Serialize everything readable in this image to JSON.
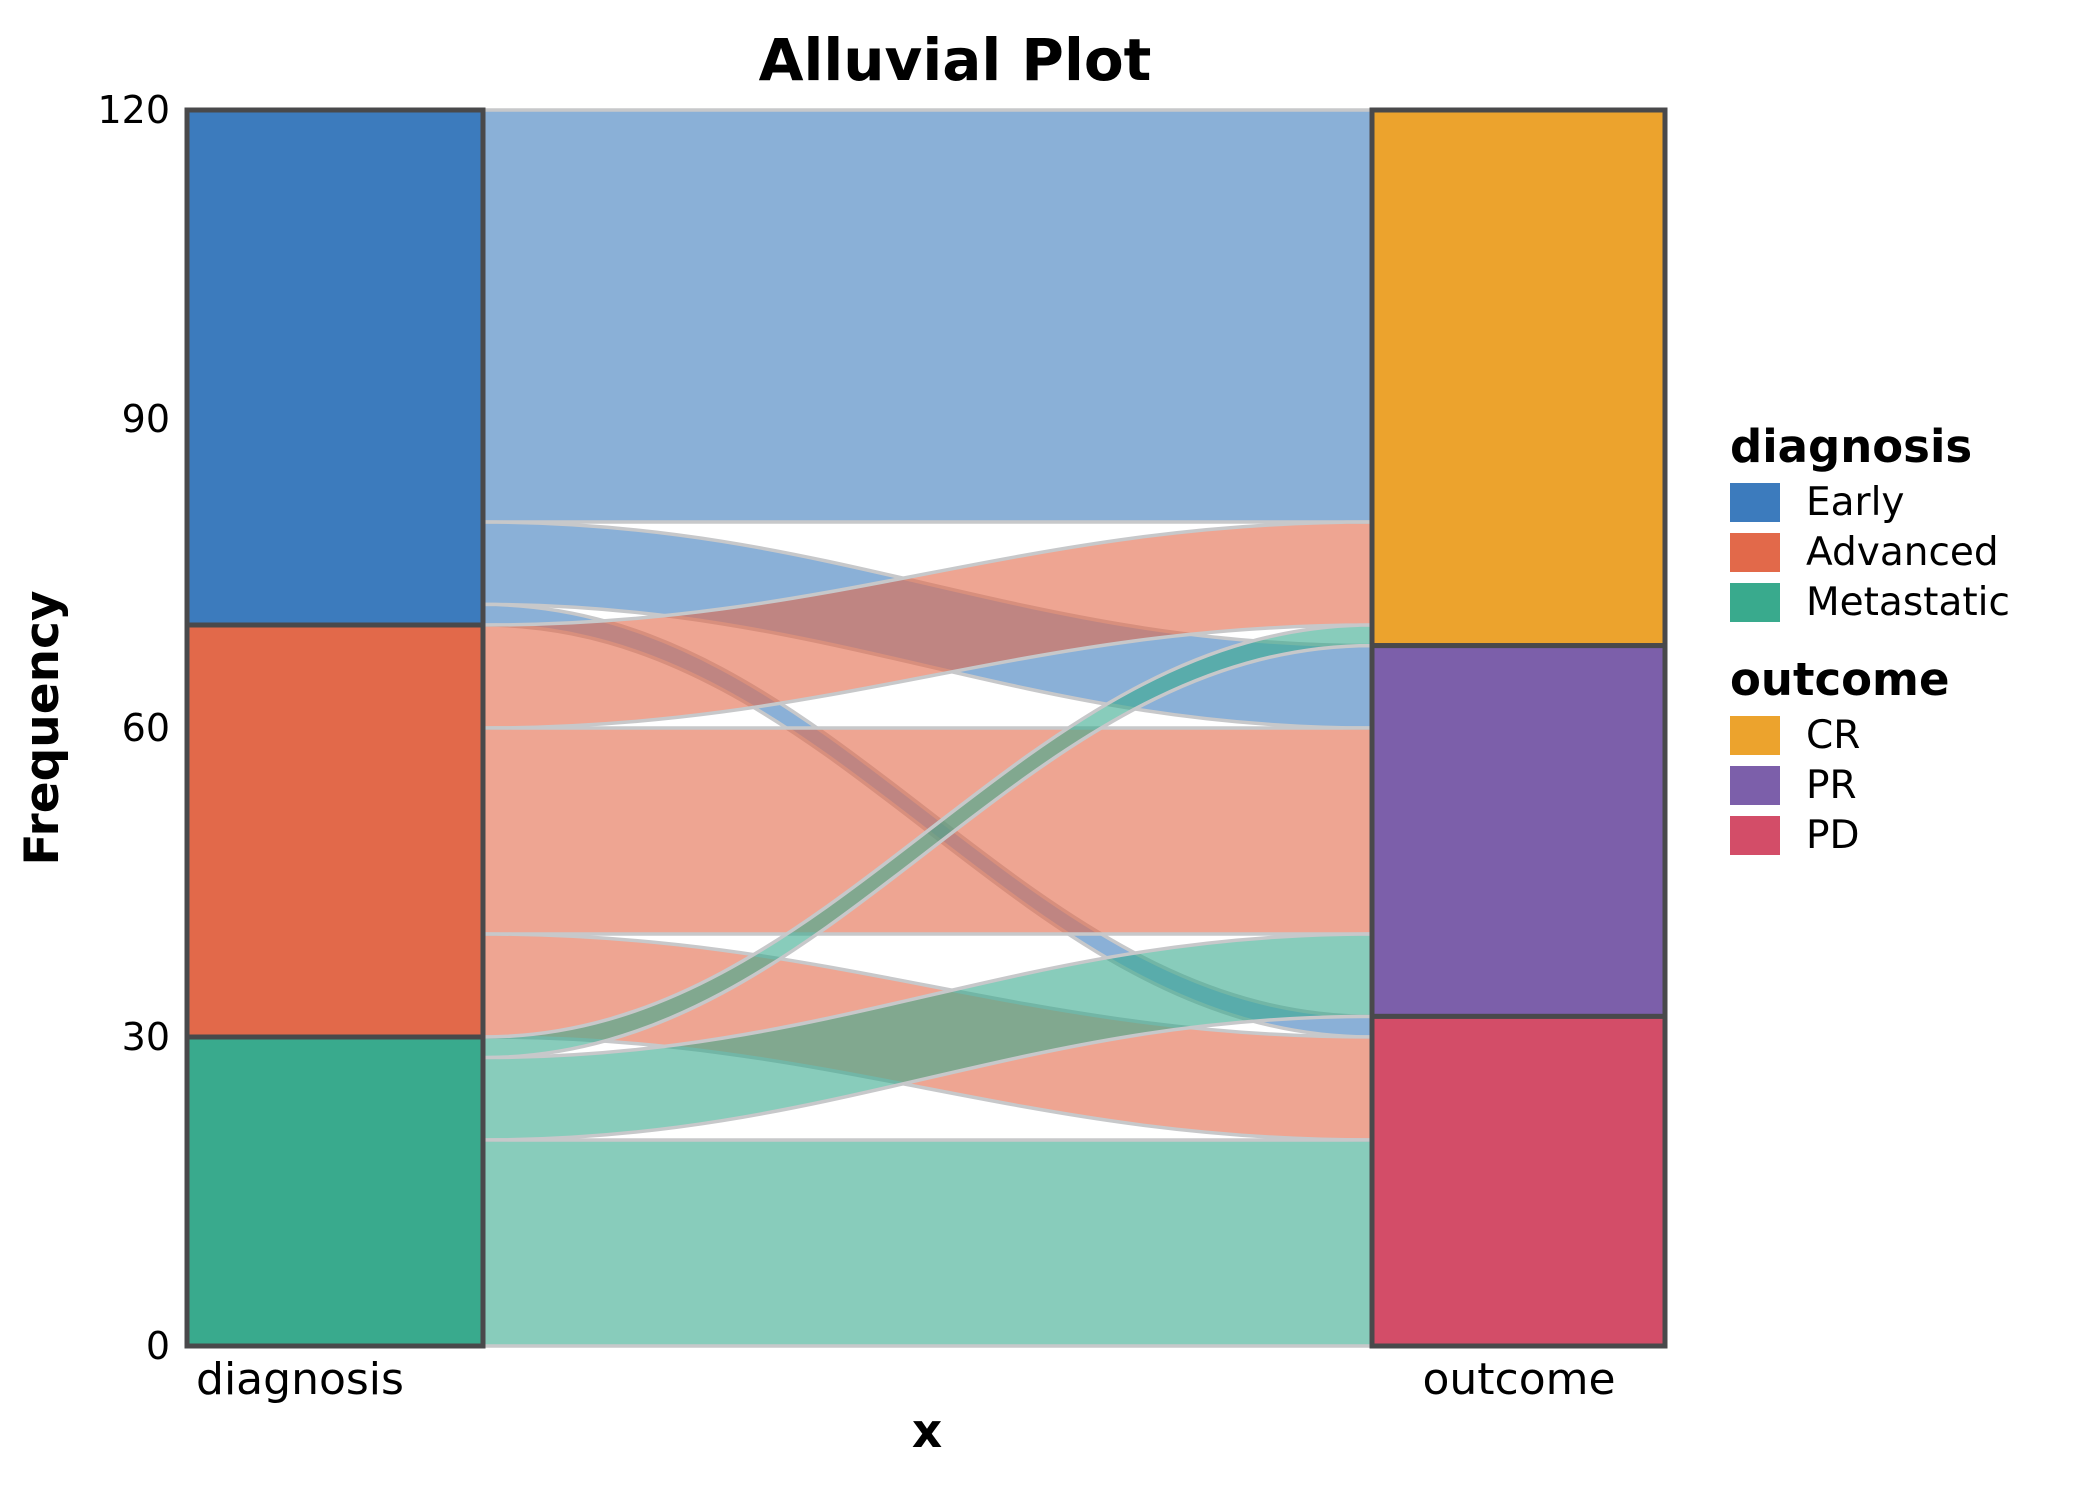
{
  "chart_data": {
    "type": "alluvial",
    "title": "Alluvial Plot",
    "xlabel": "x",
    "ylabel": "Frequency",
    "ylim": [
      0,
      120
    ],
    "yticks": [
      0,
      30,
      60,
      90,
      120
    ],
    "grid": false,
    "axes": [
      "diagnosis",
      "outcome"
    ],
    "strata": {
      "diagnosis": [
        {
          "name": "Early",
          "value": 50,
          "color": "#3C7BBD"
        },
        {
          "name": "Advanced",
          "value": 40,
          "color": "#E2694A"
        },
        {
          "name": "Metastatic",
          "value": 30,
          "color": "#39AA8D"
        }
      ],
      "outcome": [
        {
          "name": "CR",
          "value": 52,
          "color": "#ECA32D"
        },
        {
          "name": "PR",
          "value": 36,
          "color": "#7C5FAA"
        },
        {
          "name": "PD",
          "value": 32,
          "color": "#D34D68"
        }
      ]
    },
    "flows": [
      {
        "from": "Early",
        "to": "CR",
        "value": 40
      },
      {
        "from": "Early",
        "to": "PR",
        "value": 8
      },
      {
        "from": "Early",
        "to": "PD",
        "value": 2
      },
      {
        "from": "Advanced",
        "to": "CR",
        "value": 10
      },
      {
        "from": "Advanced",
        "to": "PR",
        "value": 20
      },
      {
        "from": "Advanced",
        "to": "PD",
        "value": 10
      },
      {
        "from": "Metastatic",
        "to": "CR",
        "value": 2
      },
      {
        "from": "Metastatic",
        "to": "PR",
        "value": 8
      },
      {
        "from": "Metastatic",
        "to": "PD",
        "value": 20
      }
    ],
    "style": {
      "flow_alpha": 0.6,
      "flow_border_color": "#C7C8CA",
      "stratum_border_color": "#49494B"
    },
    "legend": [
      {
        "title": "diagnosis",
        "items": [
          {
            "label": "Early",
            "color": "#3C7BBD"
          },
          {
            "label": "Advanced",
            "color": "#E2694A"
          },
          {
            "label": "Metastatic",
            "color": "#39AA8D"
          }
        ]
      },
      {
        "title": "outcome",
        "items": [
          {
            "label": "CR",
            "color": "#ECA32D"
          },
          {
            "label": "PR",
            "color": "#7C5FAA"
          },
          {
            "label": "PD",
            "color": "#D34D68"
          }
        ]
      }
    ]
  }
}
